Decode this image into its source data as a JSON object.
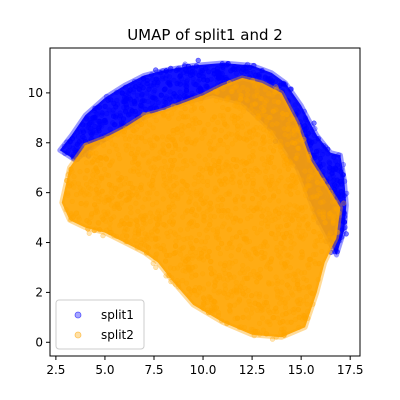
{
  "chart_data": {
    "type": "scatter",
    "title": "UMAP of split1 and 2",
    "xlabel": "",
    "ylabel": "",
    "xlim": [
      2.2,
      18.0
    ],
    "ylim": [
      -0.55,
      11.8
    ],
    "xticks": [
      2.5,
      5.0,
      7.5,
      10.0,
      12.5,
      15.0,
      17.5
    ],
    "xtick_labels": [
      "2.5",
      "5.0",
      "7.5",
      "10.0",
      "12.5",
      "15.0",
      "17.5"
    ],
    "yticks": [
      0,
      2,
      4,
      6,
      8,
      10
    ],
    "ytick_labels": [
      "0",
      "2",
      "4",
      "6",
      "8",
      "10"
    ],
    "grid": false,
    "legend_position": "lower-left",
    "series": [
      {
        "name": "split1",
        "color": "#0000ff",
        "marker": "circle",
        "alpha": 0.3,
        "region_outline": [
          [
            2.7,
            7.7
          ],
          [
            3.3,
            8.3
          ],
          [
            4.0,
            9.1
          ],
          [
            5.0,
            9.8
          ],
          [
            6.0,
            10.3
          ],
          [
            7.0,
            10.7
          ],
          [
            8.0,
            10.9
          ],
          [
            9.5,
            11.1
          ],
          [
            11.0,
            11.2
          ],
          [
            12.5,
            11.1
          ],
          [
            13.5,
            10.8
          ],
          [
            14.2,
            10.4
          ],
          [
            15.0,
            9.5
          ],
          [
            15.8,
            8.3
          ],
          [
            16.5,
            7.6
          ],
          [
            17.0,
            7.5
          ],
          [
            17.2,
            6.5
          ],
          [
            17.3,
            5.5
          ],
          [
            17.2,
            4.5
          ],
          [
            16.8,
            3.5
          ],
          [
            15.8,
            5.0
          ],
          [
            14.8,
            7.0
          ],
          [
            13.5,
            8.5
          ],
          [
            12.0,
            9.6
          ],
          [
            10.5,
            9.9
          ],
          [
            9.0,
            9.6
          ],
          [
            7.5,
            9.2
          ],
          [
            6.0,
            8.6
          ],
          [
            4.5,
            7.9
          ],
          [
            3.5,
            7.3
          ]
        ]
      },
      {
        "name": "split2",
        "color": "#ffa500",
        "marker": "circle",
        "alpha": 0.3,
        "region_outline": [
          [
            2.8,
            5.6
          ],
          [
            3.2,
            7.0
          ],
          [
            4.0,
            7.9
          ],
          [
            5.0,
            8.2
          ],
          [
            6.0,
            8.6
          ],
          [
            7.0,
            9.1
          ],
          [
            8.0,
            9.3
          ],
          [
            9.0,
            9.6
          ],
          [
            10.0,
            9.9
          ],
          [
            11.0,
            10.3
          ],
          [
            12.0,
            10.6
          ],
          [
            13.0,
            10.4
          ],
          [
            14.0,
            10.0
          ],
          [
            14.8,
            8.8
          ],
          [
            15.5,
            7.3
          ],
          [
            16.3,
            6.3
          ],
          [
            17.0,
            5.4
          ],
          [
            16.8,
            4.2
          ],
          [
            16.2,
            3.2
          ],
          [
            15.8,
            2.0
          ],
          [
            15.2,
            0.6
          ],
          [
            14.0,
            0.2
          ],
          [
            12.5,
            0.3
          ],
          [
            11.0,
            0.8
          ],
          [
            9.5,
            1.5
          ],
          [
            8.5,
            2.4
          ],
          [
            7.7,
            3.2
          ],
          [
            7.0,
            3.6
          ],
          [
            6.0,
            4.0
          ],
          [
            5.0,
            4.4
          ],
          [
            4.0,
            4.6
          ],
          [
            3.2,
            4.9
          ]
        ]
      }
    ]
  }
}
